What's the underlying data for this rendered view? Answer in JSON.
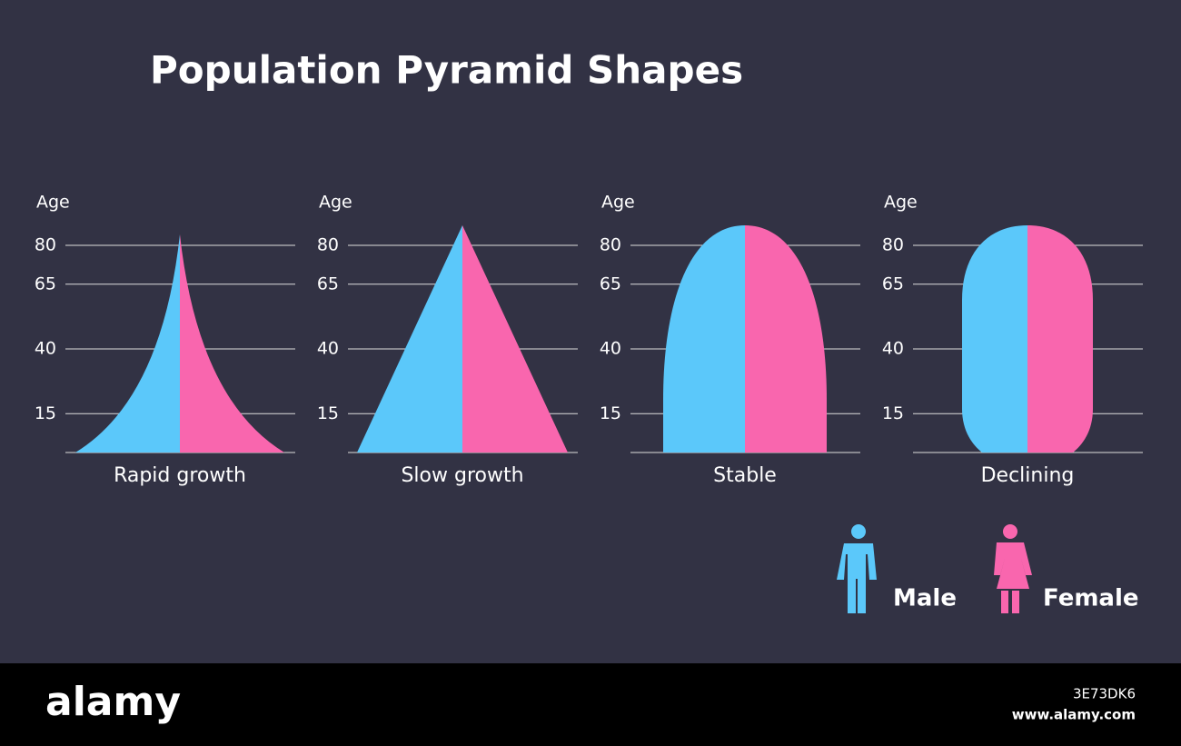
{
  "title": "Population Pyramid Shapes",
  "axis": {
    "label": "Age",
    "ticks": [
      80,
      65,
      40,
      15
    ]
  },
  "panels": [
    {
      "caption": "Rapid growth"
    },
    {
      "caption": "Slow growth"
    },
    {
      "caption": "Stable"
    },
    {
      "caption": "Declining"
    }
  ],
  "legend": {
    "male": "Male",
    "female": "Female"
  },
  "footer": {
    "brand": "alamy",
    "image_id": "3E73DK6",
    "url": "www.alamy.com"
  }
}
